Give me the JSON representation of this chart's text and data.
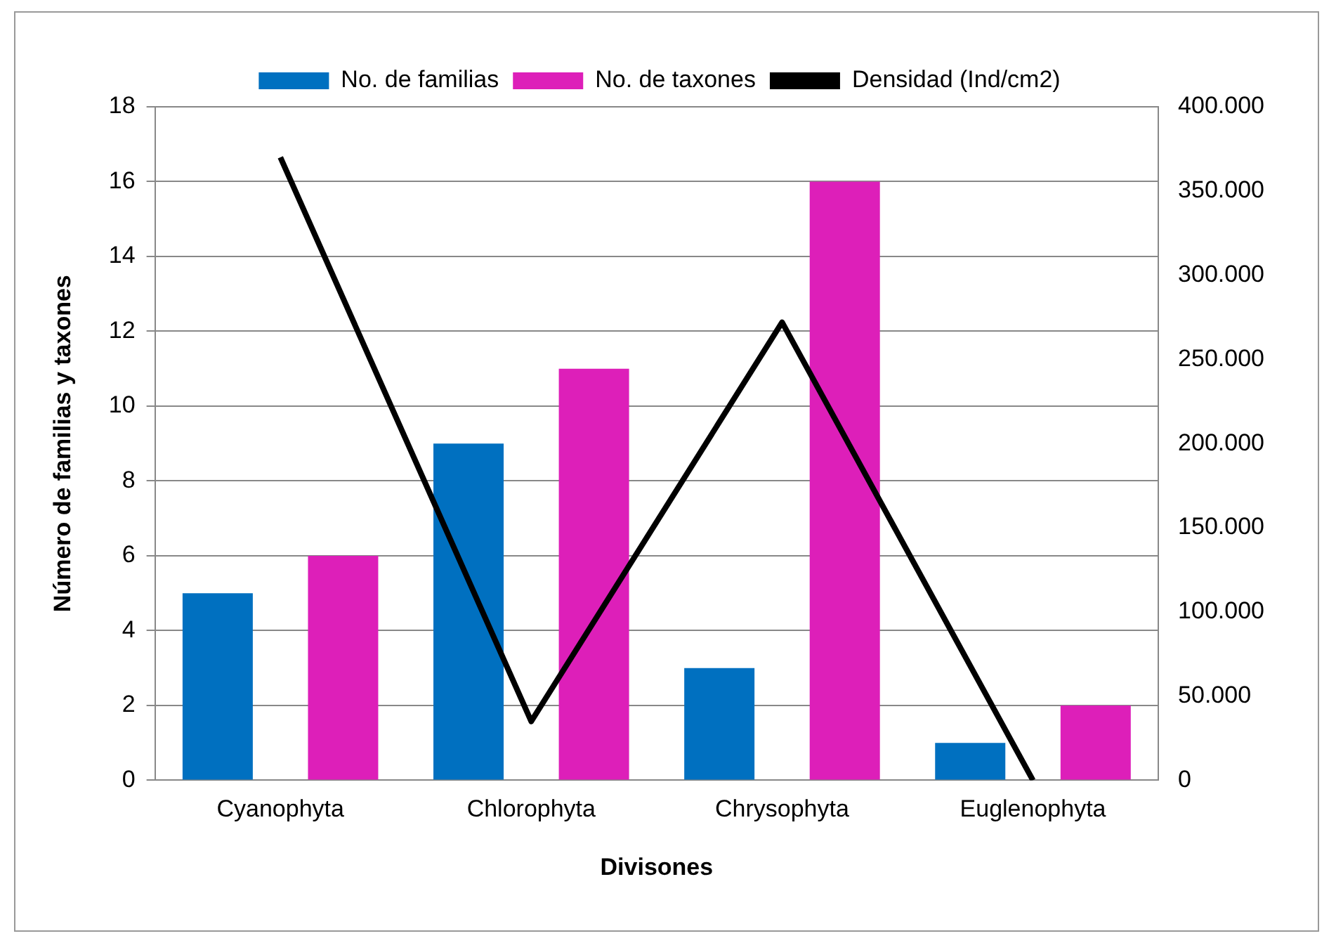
{
  "chart_data": {
    "type": "bar",
    "categories": [
      "Cyanophyta",
      "Chlorophyta",
      "Chrysophyta",
      "Euglenophyta"
    ],
    "series": [
      {
        "name": "No. de familias",
        "color": "#0070c0",
        "values": [
          5,
          9,
          3,
          1
        ]
      },
      {
        "name": "No. de taxones",
        "color": "#dd1fb9",
        "values": [
          6,
          11,
          16,
          2
        ]
      },
      {
        "name": "Densidad (Ind/cm2)",
        "color": "#000000",
        "type": "line",
        "axis": "y2",
        "values": [
          370000,
          35000,
          272000,
          0
        ]
      }
    ],
    "xlabel": "Divisones",
    "ylabel": "Número de familias y taxones",
    "ylim": [
      0,
      18
    ],
    "yticks": [
      0,
      2,
      4,
      6,
      8,
      10,
      12,
      14,
      16,
      18
    ],
    "y2lim": [
      0,
      400000
    ],
    "y2ticks": [
      {
        "value": 0,
        "label": "0"
      },
      {
        "value": 50000,
        "label": "50.000"
      },
      {
        "value": 100000,
        "label": "100.000"
      },
      {
        "value": 150000,
        "label": "150.000"
      },
      {
        "value": 200000,
        "label": "200.000"
      },
      {
        "value": 250000,
        "label": "250.000"
      },
      {
        "value": 300000,
        "label": "300.000"
      },
      {
        "value": 350000,
        "label": "350.000"
      },
      {
        "value": 400000,
        "label": "400.000"
      }
    ],
    "grid": "y",
    "legend": "top",
    "marker": "none"
  }
}
